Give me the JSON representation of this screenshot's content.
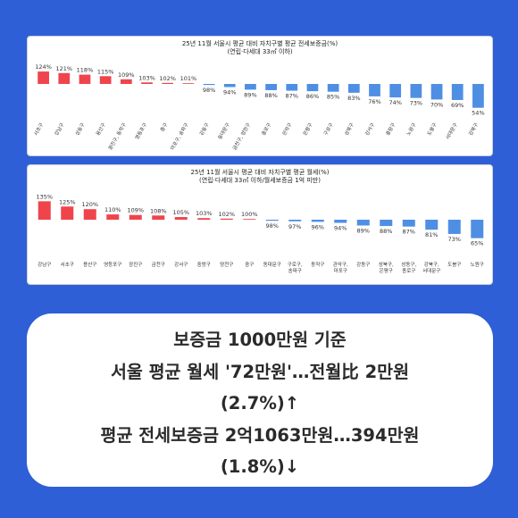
{
  "chart_data": [
    {
      "type": "bar",
      "title": "25년 11월 서울시 평균 대비 자치구별 평균 전세보증금(%)",
      "subtitle": "(연립·다세대 33㎡ 이하)",
      "baseline": 100,
      "categories": [
        "서초구",
        "강남구",
        "성동구",
        "용산구",
        "광진구, 동작구",
        "영등포구",
        "중구",
        "마포구, 송파구",
        "강동구",
        "동대문구",
        "금천구, 양천구",
        "종로구",
        "관악구",
        "은평구",
        "구로구",
        "성북구",
        "강서구",
        "중랑구",
        "노원구",
        "도봉구",
        "서대문구",
        "강북구"
      ],
      "values": [
        124,
        121,
        118,
        115,
        109,
        103,
        102,
        101,
        98,
        94,
        89,
        88,
        87,
        86,
        85,
        83,
        76,
        74,
        73,
        70,
        69,
        54
      ],
      "value_labels": [
        "124%",
        "121%",
        "118%",
        "115%",
        "109%",
        "103%",
        "102%",
        "101%",
        "98%",
        "94%",
        "89%",
        "88%",
        "87%",
        "86%",
        "85%",
        "83%",
        "76%",
        "74%",
        "73%",
        "70%",
        "69%",
        "54%"
      ],
      "colors": {
        "above": "#f0444d",
        "below": "#4f8fe3"
      }
    },
    {
      "type": "bar",
      "title": "25년 11월 서울시 평균 대비 자치구별 평균 월세(%)",
      "subtitle": "(연립·다세대 33㎡ 이하/월세보증금 1억 미만)",
      "baseline": 100,
      "categories": [
        "강남구",
        "서초구",
        "용산구",
        "영등포구",
        "광진구",
        "금천구",
        "강서구",
        "중랑구",
        "양천구",
        "중구",
        "동대문구",
        "구로구, 송파구",
        "동작구",
        "관악구, 마포구",
        "강동구",
        "성북구, 은평구",
        "성동구, 종로구",
        "강북구, 서대문구",
        "도봉구",
        "노원구"
      ],
      "values": [
        135,
        125,
        120,
        110,
        109,
        108,
        105,
        103,
        102,
        100,
        98,
        97,
        96,
        94,
        89,
        88,
        87,
        81,
        73,
        65
      ],
      "value_labels": [
        "135%",
        "125%",
        "120%",
        "110%",
        "109%",
        "108%",
        "105%",
        "103%",
        "102%",
        "100%",
        "98%",
        "97%",
        "96%",
        "94%",
        "89%",
        "88%",
        "87%",
        "81%",
        "73%",
        "65%"
      ],
      "colors": {
        "above": "#f0444d",
        "below": "#4f8fe3"
      }
    }
  ],
  "summary": {
    "lines": [
      "보증금 1000만원 기준",
      "서울 평균 월세 '72만원'…전월比 2만원",
      "(2.7%)↑",
      "평균 전세보증금 2억1063만원…394만원",
      "(1.8%)↓"
    ]
  },
  "colors": {
    "background": "#2f5fd6",
    "card": "#ffffff"
  }
}
